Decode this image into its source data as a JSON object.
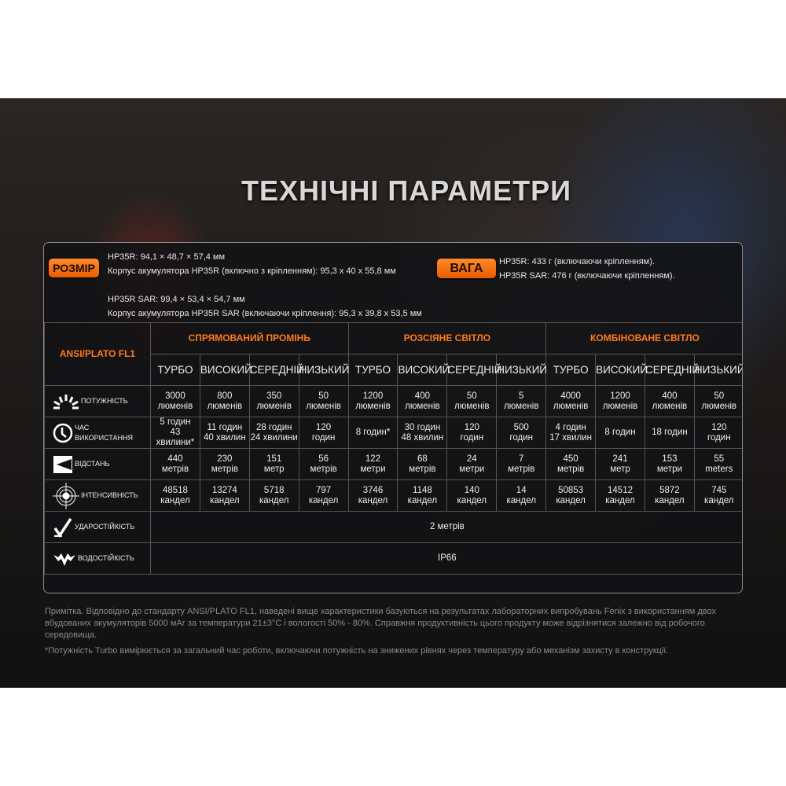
{
  "title": "ТЕХНІЧНІ ПАРАМЕТРИ",
  "size": {
    "badge": "РОЗМІР",
    "lines": [
      "HP35R: 94,1 × 48,7 × 57,4 мм",
      "Корпус акумулятора HP35R (включно з кріпленням): 95,3 x 40 x 55,8 мм",
      "HP35R SAR: 99,4 × 53,4 × 54,7 мм",
      "Корпус акумулятора HP35R SAR (включаючи кріплення): 95,3 x 39,8 x 53,5 мм"
    ]
  },
  "weight": {
    "badge": "ВАГА",
    "lines": [
      "HP35R: 433 г (включаючи кріпленням).",
      "HP35R SAR: 476 г (включаючи кріпленням)."
    ]
  },
  "table": {
    "standard": "ANSI/PLATO FL1",
    "groups": [
      "СПРЯМОВАНИЙ ПРОМІНЬ",
      "РОЗСІЯНЕ СВІТЛО",
      "КОМБІНОВАНЕ СВІТЛО"
    ],
    "modes": [
      "ТУРБО",
      "ВИСОКИЙ",
      "СЕРЕДНІЙ",
      "НИЗЬКИЙ",
      "ТУРБО",
      "ВИСОКИЙ",
      "СЕРЕДНІЙ",
      "НИЗЬКИЙ",
      "ТУРБО",
      "ВИСОКИЙ",
      "СЕРЕДНІЙ",
      "НИЗЬКИЙ"
    ],
    "rows": [
      {
        "icon": "sunburst-icon",
        "label": "ПОТУЖНІСТЬ",
        "cells": [
          "3000\nлюменів",
          "800\nлюменів",
          "350\nлюменів",
          "50\nлюменів",
          "1200\nлюменів",
          "400\nлюменів",
          "50\nлюменів",
          "5\nлюменів",
          "4000\nлюменів",
          "1200\nлюменів",
          "400\nлюменів",
          "50\nлюменів"
        ]
      },
      {
        "icon": "clock-icon",
        "label": "ЧАС\nВИКОРИСТАННЯ",
        "cells": [
          "5 годин\n43 хвилини*",
          "11 годин\n40 хвилин",
          "28 годин\n24 хвилини",
          "120\nгодин",
          "8 годин*",
          "30 годин\n48 хвилин",
          "120\nгодин",
          "500\nгодин",
          "4 годин\n17 хвилин",
          "8 годин",
          "18 годин",
          "120\nгодин"
        ]
      },
      {
        "icon": "beam-distance-icon",
        "label": "ВІДСТАНЬ",
        "cells": [
          "440\nметрів",
          "230\nметрів",
          "151\nметр",
          "56\nметрів",
          "122\nметри",
          "68\nметрів",
          "24\nметри",
          "7\nметрів",
          "450\nметрів",
          "241\nметр",
          "153\nметри",
          "55\nmeters"
        ]
      },
      {
        "icon": "target-icon",
        "label": "ІНТЕНСИВНІСТЬ",
        "cells": [
          "48518\nкандел",
          "13274\nкандел",
          "5718\nкандел",
          "797\nкандел",
          "3746\nкандел",
          "1148\nкандел",
          "140\nкандел",
          "14\nкандел",
          "50853\nкандел",
          "14512\nкандел",
          "5872\nкандел",
          "745\nкандел"
        ]
      },
      {
        "icon": "impact-icon",
        "label": "УДАРОСТІЙКІСТЬ",
        "span": "2 метрів"
      },
      {
        "icon": "water-icon",
        "label": "ВОДОСТІЙКІСТЬ",
        "span": "IP66"
      }
    ]
  },
  "notes": [
    "Примітка. Відповідно до стандарту ANSI/PLATO FL1, наведені вище характеристики базуються на результатах лабораторних випробувань Fenix з використанням двох вбудованих акумуляторів 5000 мАг за температури 21±3°C і вологості 50% - 80%. Справжня продуктивність цього продукту може відрізнятися залежно від робочого середовища.",
    "*Потужність Turbo вимірюється за загальний час роботи, включаючи потужність на знижених рівнях через температуру або механізм захисту в конструкції."
  ]
}
